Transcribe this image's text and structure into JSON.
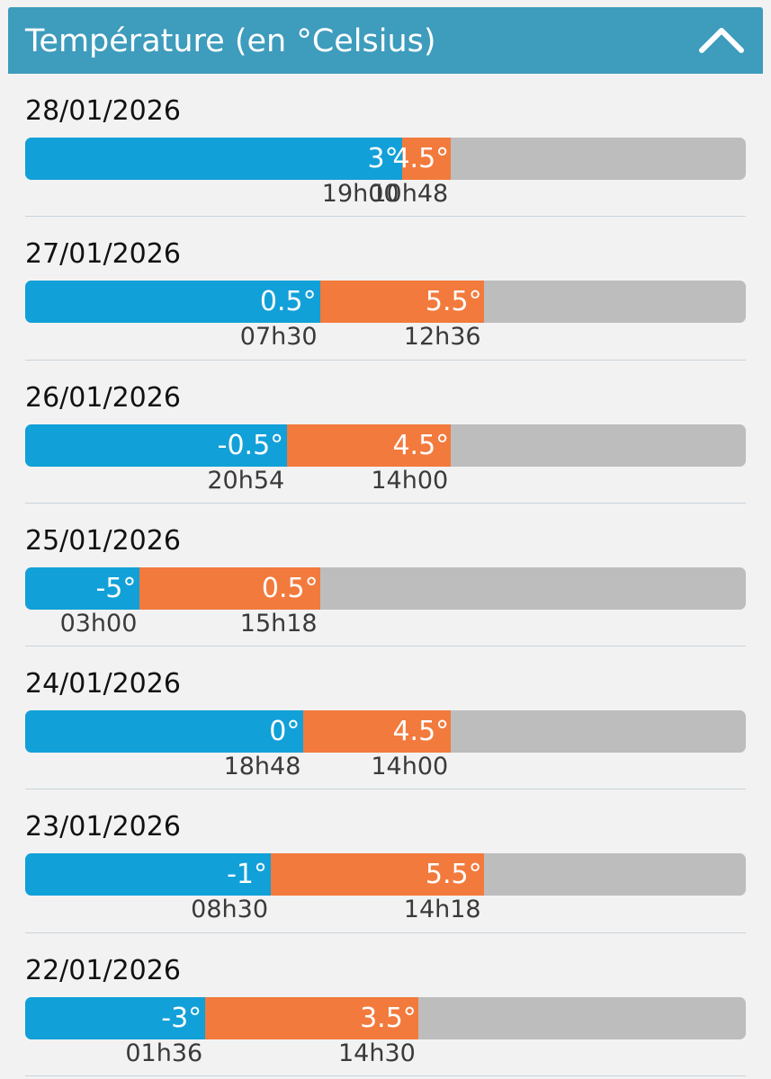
{
  "header": {
    "title": "Température (en °Celsius)",
    "collapse_icon": "chevron-up-icon"
  },
  "colors": {
    "header": "#3e9cbd",
    "min_bar": "#12a0d8",
    "max_bar": "#f27a3d",
    "track": "#bdbdbd",
    "background": "#f2f2f2"
  },
  "days": [
    {
      "date": "28/01/2026",
      "min": "3°",
      "min_time": "19h00",
      "max": "4.5°",
      "max_time": "10h48",
      "min_value": 3,
      "max_value": 4.5
    },
    {
      "date": "27/01/2026",
      "min": "0.5°",
      "min_time": "07h30",
      "max": "5.5°",
      "max_time": "12h36",
      "min_value": 0.5,
      "max_value": 5.5
    },
    {
      "date": "26/01/2026",
      "min": "-0.5°",
      "min_time": "20h54",
      "max": "4.5°",
      "max_time": "14h00",
      "min_value": -0.5,
      "max_value": 4.5
    },
    {
      "date": "25/01/2026",
      "min": "-5°",
      "min_time": "03h00",
      "max": "0.5°",
      "max_time": "15h18",
      "min_value": -5,
      "max_value": 0.5
    },
    {
      "date": "24/01/2026",
      "min": "0°",
      "min_time": "18h48",
      "max": "4.5°",
      "max_time": "14h00",
      "min_value": 0,
      "max_value": 4.5
    },
    {
      "date": "23/01/2026",
      "min": "-1°",
      "min_time": "08h30",
      "max": "5.5°",
      "max_time": "14h18",
      "min_value": -1,
      "max_value": 5.5
    },
    {
      "date": "22/01/2026",
      "min": "-3°",
      "min_time": "01h36",
      "max": "3.5°",
      "max_time": "14h30",
      "min_value": -3,
      "max_value": 3.5
    }
  ]
}
